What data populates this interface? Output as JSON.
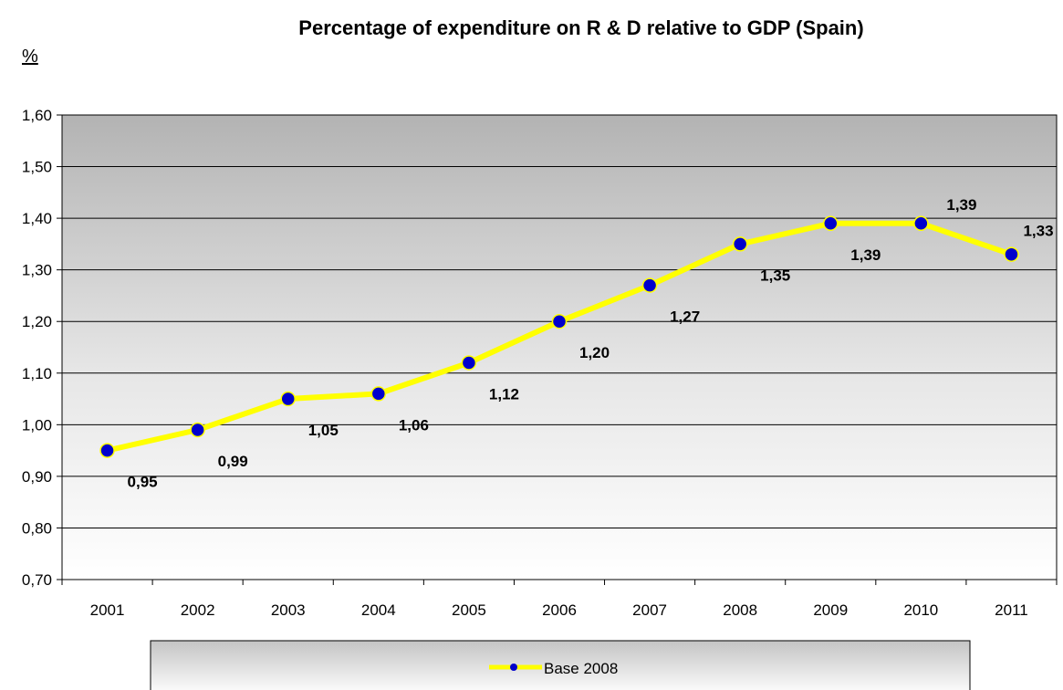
{
  "chart_data": {
    "type": "line",
    "title": "Percentage of expenditure on R & D relative to GDP (Spain)",
    "ylabel": "%",
    "xlabel": "",
    "categories": [
      "2001",
      "2002",
      "2003",
      "2004",
      "2005",
      "2006",
      "2007",
      "2008",
      "2009",
      "2010",
      "2011"
    ],
    "series": [
      {
        "name": "Base 2008",
        "values": [
          0.95,
          0.99,
          1.05,
          1.06,
          1.12,
          1.2,
          1.27,
          1.35,
          1.39,
          1.39,
          1.33
        ],
        "labels": [
          "0,95",
          "0,99",
          "1,05",
          "1,06",
          "1,12",
          "1,20",
          "1,27",
          "1,35",
          "1,39",
          "1,39",
          "1,33"
        ],
        "line_color": "#ffff00",
        "marker_color": "#0000cc"
      }
    ],
    "ylim": [
      0.7,
      1.6
    ],
    "yticks": [
      0.7,
      0.8,
      0.9,
      1.0,
      1.1,
      1.2,
      1.3,
      1.4,
      1.5,
      1.6
    ],
    "ytick_labels": [
      "0,70",
      "0,80",
      "0,90",
      "1,00",
      "1,10",
      "1,20",
      "1,30",
      "1,40",
      "1,50",
      "1,60"
    ],
    "grid": true,
    "legend_position": "bottom"
  }
}
